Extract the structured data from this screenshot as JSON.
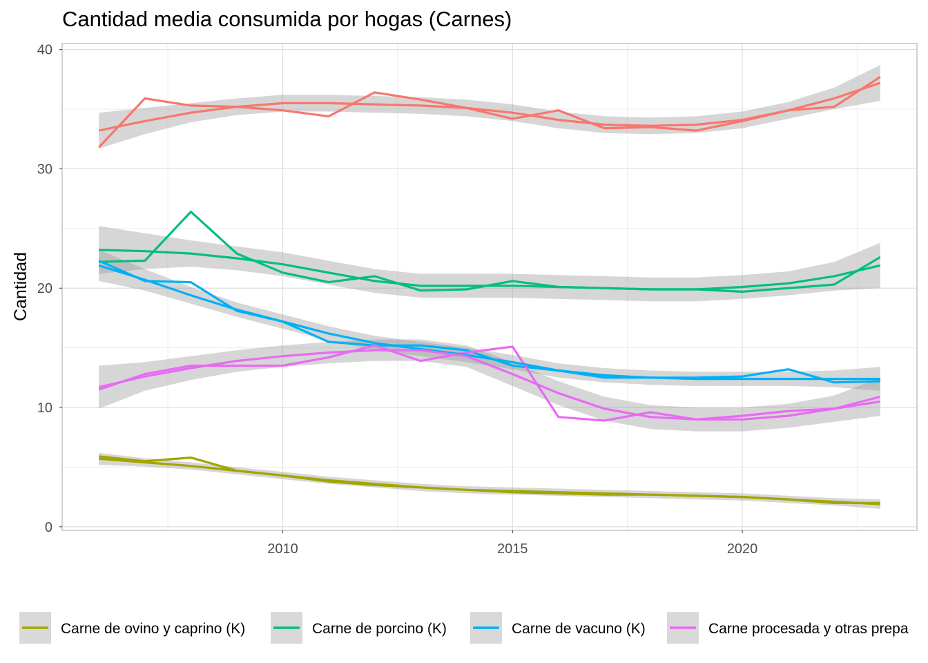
{
  "chart_data": {
    "type": "line",
    "title": "Cantidad media consumida por hogas (Carnes)",
    "xlabel": "",
    "ylabel": "Cantidad",
    "xlim": [
      2005.2,
      2023.8
    ],
    "ylim": [
      -0.3,
      40.5
    ],
    "x_ticks": [
      2010,
      2015,
      2020
    ],
    "y_ticks": [
      0,
      10,
      20,
      30,
      40
    ],
    "grid": true,
    "legend_position": "bottom",
    "x": [
      2006,
      2007,
      2008,
      2009,
      2010,
      2011,
      2012,
      2013,
      2014,
      2015,
      2016,
      2017,
      2018,
      2019,
      2020,
      2021,
      2022,
      2023
    ],
    "series": [
      {
        "color": "#F8766D",
        "values": [
          31.8,
          35.9,
          35.3,
          35.2,
          34.9,
          34.4,
          36.4,
          35.8,
          35.1,
          34.2,
          34.9,
          33.4,
          33.5,
          33.2,
          34.0,
          34.9,
          35.2,
          37.7
        ],
        "smooth": [
          33.2,
          34.0,
          34.7,
          35.2,
          35.5,
          35.5,
          35.4,
          35.3,
          35.1,
          34.7,
          34.1,
          33.7,
          33.6,
          33.7,
          34.1,
          34.9,
          35.9,
          37.2
        ],
        "band": [
          1.5,
          1.1,
          0.8,
          0.7,
          0.7,
          0.7,
          0.7,
          0.7,
          0.7,
          0.7,
          0.7,
          0.7,
          0.7,
          0.7,
          0.7,
          0.7,
          0.9,
          1.5
        ]
      },
      {
        "name": "Carne de ovino y caprino (K)",
        "color": "#A3A500",
        "values": [
          5.9,
          5.5,
          5.8,
          4.7,
          4.3,
          3.8,
          3.5,
          3.3,
          3.1,
          2.9,
          2.8,
          2.7,
          2.7,
          2.6,
          2.5,
          2.3,
          2.0,
          2.0
        ],
        "smooth": [
          5.7,
          5.4,
          5.1,
          4.7,
          4.3,
          3.9,
          3.6,
          3.3,
          3.1,
          3.0,
          2.9,
          2.8,
          2.7,
          2.6,
          2.5,
          2.3,
          2.1,
          1.9
        ],
        "band": [
          0.5,
          0.35,
          0.3,
          0.3,
          0.3,
          0.3,
          0.3,
          0.3,
          0.3,
          0.3,
          0.3,
          0.3,
          0.3,
          0.3,
          0.3,
          0.3,
          0.3,
          0.4
        ]
      },
      {
        "name": "Carne de porcino (K)",
        "color": "#00BF7D",
        "values": [
          22.2,
          22.3,
          26.4,
          22.9,
          21.3,
          20.5,
          21.0,
          19.8,
          19.9,
          20.6,
          20.1,
          20.0,
          19.9,
          19.9,
          19.7,
          20.0,
          20.3,
          22.6
        ],
        "smooth": [
          23.2,
          23.1,
          22.9,
          22.5,
          22.0,
          21.3,
          20.6,
          20.2,
          20.2,
          20.2,
          20.1,
          20.0,
          19.9,
          19.9,
          20.1,
          20.4,
          21.0,
          21.9
        ],
        "band": [
          2.0,
          1.5,
          1.1,
          1.0,
          1.0,
          1.0,
          1.0,
          1.0,
          1.0,
          1.0,
          1.0,
          1.0,
          1.0,
          1.0,
          1.0,
          1.0,
          1.2,
          1.9
        ]
      },
      {
        "name": "Carne de vacuno (K)",
        "color": "#00B0F6",
        "values": [
          22.3,
          20.6,
          20.5,
          18.1,
          17.2,
          15.5,
          15.2,
          15.2,
          14.8,
          13.5,
          13.1,
          12.5,
          12.5,
          12.5,
          12.6,
          13.2,
          12.1,
          12.2
        ],
        "smooth": [
          21.9,
          20.7,
          19.4,
          18.2,
          17.2,
          16.2,
          15.4,
          14.9,
          14.4,
          13.8,
          13.1,
          12.7,
          12.5,
          12.4,
          12.4,
          12.4,
          12.4,
          12.4
        ],
        "band": [
          1.3,
          0.9,
          0.7,
          0.6,
          0.6,
          0.6,
          0.6,
          0.6,
          0.6,
          0.6,
          0.6,
          0.6,
          0.6,
          0.6,
          0.6,
          0.6,
          0.7,
          1.0
        ]
      },
      {
        "name": "Carne procesada y otras prepa",
        "color": "#E76BF3",
        "values": [
          11.5,
          12.8,
          13.5,
          13.5,
          13.5,
          14.2,
          15.2,
          13.9,
          14.6,
          15.1,
          9.2,
          8.9,
          9.6,
          9.0,
          9.3,
          9.7,
          9.9,
          10.5
        ],
        "smooth": [
          11.7,
          12.6,
          13.3,
          13.9,
          14.3,
          14.6,
          14.8,
          14.8,
          14.3,
          12.8,
          11.2,
          9.9,
          9.2,
          9.0,
          9.0,
          9.3,
          9.9,
          10.9
        ],
        "band": [
          1.8,
          1.2,
          1.0,
          0.9,
          0.9,
          0.9,
          0.9,
          0.9,
          0.9,
          1.0,
          1.0,
          1.0,
          1.0,
          1.0,
          1.0,
          1.0,
          1.1,
          1.6
        ]
      }
    ]
  }
}
